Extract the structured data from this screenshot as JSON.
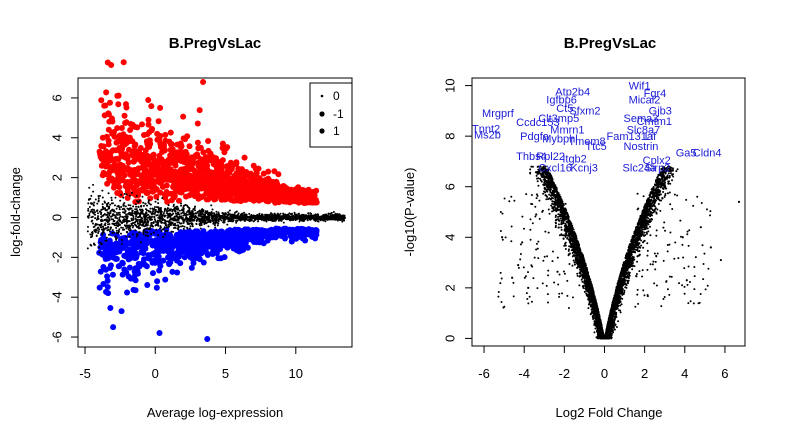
{
  "chart_data": [
    {
      "type": "scatter",
      "title": "B.PregVsLac",
      "xlabel": "Average log-expression",
      "ylabel": "log-fold-change",
      "xlim": [
        -5.5,
        14
      ],
      "ylim": [
        -6.5,
        7
      ],
      "x_ticks": [
        -5,
        0,
        5,
        10
      ],
      "y_ticks": [
        -6,
        -4,
        -2,
        0,
        2,
        4,
        6
      ],
      "grid": false,
      "legend_position": "top-right",
      "legend": [
        {
          "label": "0",
          "color": "#000000"
        },
        {
          "label": "-1",
          "color": "#0000ff"
        },
        {
          "label": "1",
          "color": "#ff0000"
        }
      ],
      "series": [
        {
          "name": "0",
          "color": "#000000",
          "status": 0
        },
        {
          "name": "-1",
          "color": "#0000ff",
          "status": -1
        },
        {
          "name": "1",
          "color": "#ff0000",
          "status": 1
        }
      ],
      "outliers": [
        {
          "x": 3.4,
          "y": 6.8,
          "status": 1
        },
        {
          "x": -2.7,
          "y": 6.1,
          "status": 1
        },
        {
          "x": -3.0,
          "y": -5.5,
          "status": -1
        },
        {
          "x": 0.3,
          "y": -5.8,
          "status": -1
        },
        {
          "x": 3.7,
          "y": -6.1,
          "status": -1
        },
        {
          "x": -2.4,
          "y": -4.7,
          "status": -1
        }
      ]
    },
    {
      "type": "scatter",
      "title": "B.PregVsLac",
      "xlabel": "Log2 Fold Change",
      "ylabel": "-log10(P-value)",
      "xlim": [
        -6.6,
        7.0
      ],
      "ylim": [
        -0.3,
        10.3
      ],
      "x_ticks": [
        -6,
        -4,
        -2,
        0,
        2,
        4,
        6
      ],
      "y_ticks": [
        0,
        2,
        4,
        6,
        8,
        10
      ],
      "grid": false,
      "point_color": "#000000",
      "label_color": "#1c1cd8",
      "gene_labels": [
        {
          "text": "Wif1",
          "x": 1.2,
          "y": 9.85
        },
        {
          "text": "Atp2b4",
          "x": -2.45,
          "y": 9.6
        },
        {
          "text": "Igfbp6",
          "x": -2.9,
          "y": 9.3
        },
        {
          "text": "Fgr4",
          "x": 1.95,
          "y": 9.55
        },
        {
          "text": "Mical2",
          "x": 1.2,
          "y": 9.3
        },
        {
          "text": "Gjb3",
          "x": 2.2,
          "y": 8.85
        },
        {
          "text": "Mrgprf",
          "x": -6.1,
          "y": 8.75
        },
        {
          "text": "Ct5",
          "x": -2.4,
          "y": 8.95
        },
        {
          "text": "Sfxm2",
          "x": -1.75,
          "y": 8.85
        },
        {
          "text": "Ccdc153",
          "x": -4.4,
          "y": 8.4
        },
        {
          "text": "Clt3mp5",
          "x": -3.3,
          "y": 8.55
        },
        {
          "text": "Sema3",
          "x": 0.95,
          "y": 8.55
        },
        {
          "text": "Cmtm1",
          "x": 1.6,
          "y": 8.45
        },
        {
          "text": "Tnnt2",
          "x": -6.6,
          "y": 8.15
        },
        {
          "text": "Ms2b",
          "x": -6.5,
          "y": 7.9
        },
        {
          "text": "Mmrn1",
          "x": -2.7,
          "y": 8.1
        },
        {
          "text": "Slc8a7",
          "x": 1.1,
          "y": 8.1
        },
        {
          "text": "Fam131a",
          "x": 0.1,
          "y": 7.85
        },
        {
          "text": "Lif",
          "x": 2.0,
          "y": 7.85
        },
        {
          "text": "Pdgfa",
          "x": -4.2,
          "y": 7.85
        },
        {
          "text": "Mybphl",
          "x": -3.1,
          "y": 7.75
        },
        {
          "text": "Tmem8",
          "x": -1.8,
          "y": 7.65
        },
        {
          "text": "Ttc5",
          "x": -0.95,
          "y": 7.45
        },
        {
          "text": "Nostrin",
          "x": 0.95,
          "y": 7.45
        },
        {
          "text": "Thbs4",
          "x": -4.4,
          "y": 7.05
        },
        {
          "text": "Rpl22",
          "x": -3.4,
          "y": 7.05
        },
        {
          "text": "Itgb2",
          "x": -2.1,
          "y": 6.95
        },
        {
          "text": "Cxcl16",
          "x": -3.3,
          "y": 6.6
        },
        {
          "text": "Kcnj3",
          "x": -1.7,
          "y": 6.6
        },
        {
          "text": "Slc24a",
          "x": 0.9,
          "y": 6.6
        },
        {
          "text": "Sirp2",
          "x": 2.0,
          "y": 6.6
        },
        {
          "text": "Cplx2",
          "x": 1.9,
          "y": 6.9
        },
        {
          "text": "Ga5",
          "x": 3.55,
          "y": 7.2
        },
        {
          "text": "Cldn4",
          "x": 4.4,
          "y": 7.2
        }
      ],
      "outliers": [
        {
          "x": 6.7,
          "y": 5.4
        },
        {
          "x": -5.1,
          "y": 4.0
        },
        {
          "x": -4.1,
          "y": 3.8
        },
        {
          "x": 5.8,
          "y": 3.1
        },
        {
          "x": -4.6,
          "y": 2.4
        },
        {
          "x": 4.8,
          "y": 4.4
        },
        {
          "x": -3.4,
          "y": 4.9
        },
        {
          "x": 3.9,
          "y": 4.0
        },
        {
          "x": -4.3,
          "y": 2.9
        },
        {
          "x": 4.1,
          "y": 2.3
        },
        {
          "x": 5.3,
          "y": 3.6
        },
        {
          "x": -3.8,
          "y": 2.0
        }
      ]
    }
  ]
}
